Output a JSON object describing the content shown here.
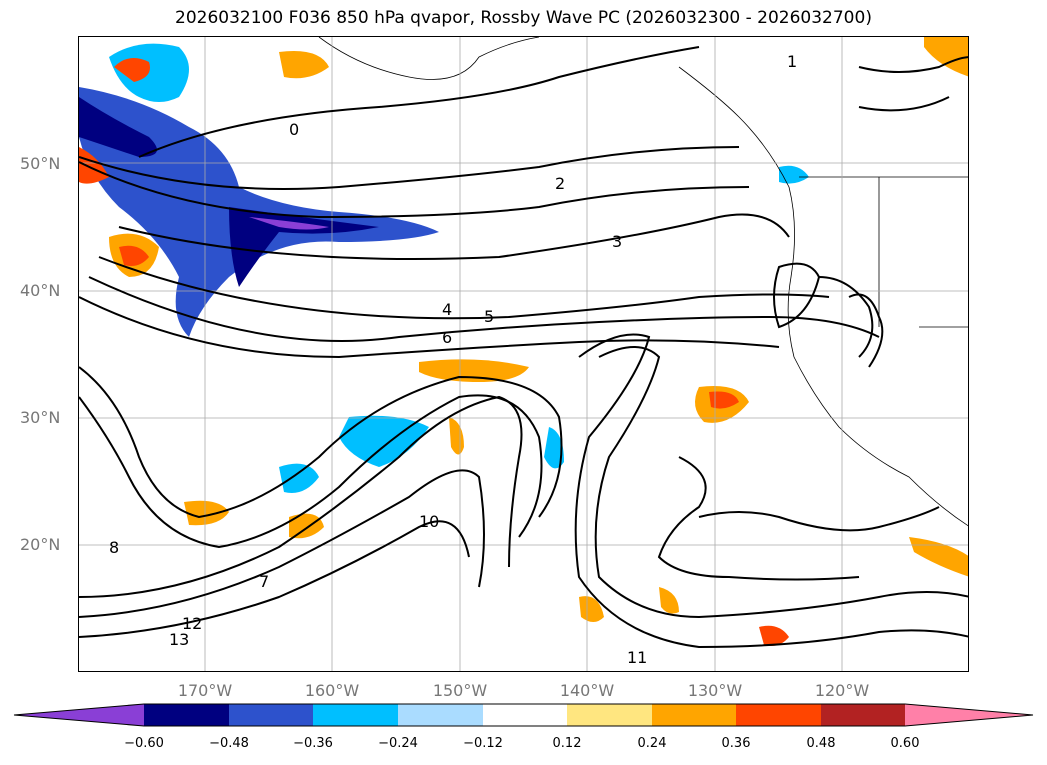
{
  "title": "2026032100 F036 850 hPa qvapor, Rossby Wave PC (2026032300 - 2026032700)",
  "lat_labels": [
    "50°N",
    "40°N",
    "30°N",
    "20°N"
  ],
  "lon_labels": [
    "170°W",
    "160°W",
    "150°W",
    "140°W",
    "130°W",
    "120°W"
  ],
  "colorbar": {
    "ticks": [
      "−0.60",
      "−0.48",
      "−0.36",
      "−0.24",
      "−0.12",
      "0.12",
      "0.24",
      "0.36",
      "0.48",
      "0.60"
    ],
    "colors": [
      "#8a3fd6",
      "#000080",
      "#2d52cc",
      "#00bfff",
      "#aadcff",
      "#ffffff",
      "#ffe680",
      "#ffa500",
      "#ff4500",
      "#b22222",
      "#ff80a8"
    ]
  },
  "contour_labels": [
    "0",
    "2",
    "3",
    "4",
    "5",
    "6",
    "1",
    "7",
    "8",
    "10",
    "11",
    "12",
    "13"
  ]
}
